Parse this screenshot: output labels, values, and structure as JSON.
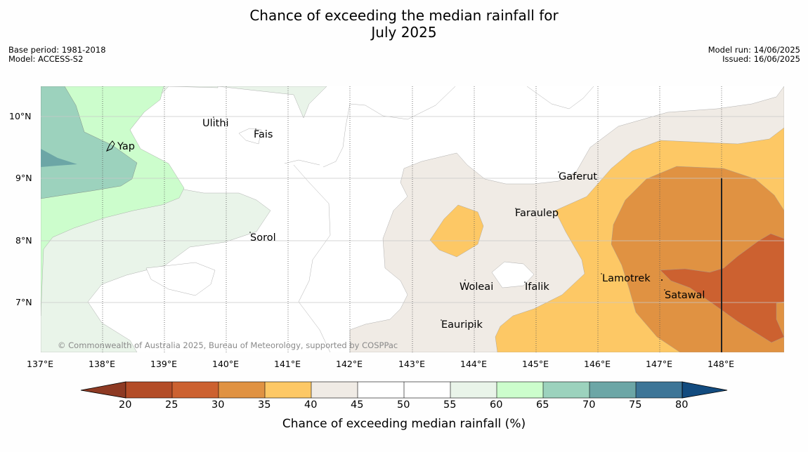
{
  "title_line1": "Chance of exceeding the median rainfall for",
  "title_line2": "July 2025",
  "meta_left": [
    "Base period: 1981-2018",
    "Model: ACCESS-S2"
  ],
  "meta_right": [
    "Model run: 14/06/2025",
    "Issued: 16/06/2025"
  ],
  "copyright": "© Commonwealth of Australia 2025, Bureau of Meteorology, supported by COSPPac",
  "lon_ticks": [
    "137°E",
    "138°E",
    "139°E",
    "140°E",
    "141°E",
    "142°E",
    "143°E",
    "144°E",
    "145°E",
    "146°E",
    "147°E",
    "148°E"
  ],
  "lat_ticks": [
    "10°N",
    "9°N",
    "8°N",
    "7°N"
  ],
  "places": [
    "Ulithi",
    "Fais",
    "Yap",
    "Gaferut",
    "Faraulep",
    "Sorol",
    "Lamotrek",
    "Woleai",
    "Ifalik",
    "Satawal",
    "Eauripik"
  ],
  "colorbar": {
    "title": "Chance of exceeding median rainfall (%)",
    "ticks": [
      "20",
      "25",
      "30",
      "35",
      "40",
      "45",
      "50",
      "55",
      "60",
      "65",
      "70",
      "75",
      "80"
    ],
    "colors": [
      "#8e3a23",
      "#b34c27",
      "#cc6130",
      "#e09242",
      "#fdc865",
      "#f0ebe5",
      "#ffffff",
      "#ffffff",
      "#e9f4e9",
      "#ccfdcc",
      "#9cd2bd",
      "#6ca6a6",
      "#3d7597",
      "#124b7f"
    ]
  },
  "map_colors": {
    "c25_30": "#cc6130",
    "c30_35": "#e09242",
    "c35_40": "#fdc865",
    "c40_45": "#f0ebe5",
    "c45_55": "#ffffff",
    "c55_60": "#e9f4e9",
    "c60_65": "#ccfdcc",
    "c65_70": "#9cd2bd",
    "c70_75": "#6ca6a6"
  }
}
